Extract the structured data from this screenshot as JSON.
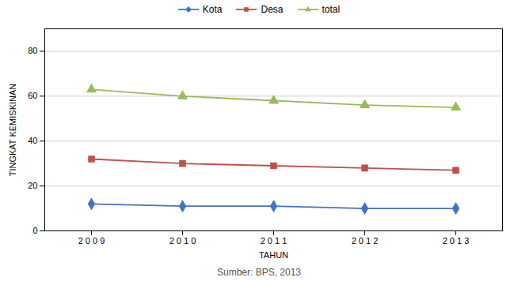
{
  "chart_data": {
    "type": "line",
    "xlabel": "TAHUN",
    "ylabel": "TINGKAT KEMISKINAN",
    "categories": [
      "2 0 0 9",
      "2 0 1 0",
      "2 0 1 1",
      "2 0 1 2",
      "2 0 1 3"
    ],
    "series": [
      {
        "name": "Kota",
        "color": "#4472C4",
        "marker": "diamond",
        "values": [
          12,
          11,
          11,
          10,
          10
        ]
      },
      {
        "name": "Desa",
        "color": "#C0504D",
        "marker": "square",
        "values": [
          32,
          30,
          29,
          28,
          27
        ]
      },
      {
        "name": "total",
        "color": "#9BBB59",
        "marker": "triangle",
        "values": [
          63,
          60,
          58,
          56,
          55
        ]
      }
    ],
    "ylim": [
      0,
      90
    ],
    "yticks": [
      0,
      20,
      40,
      60,
      80
    ],
    "grid": true,
    "legend": "top",
    "annotations": [
      "Sumber: BPS, 2013"
    ]
  }
}
